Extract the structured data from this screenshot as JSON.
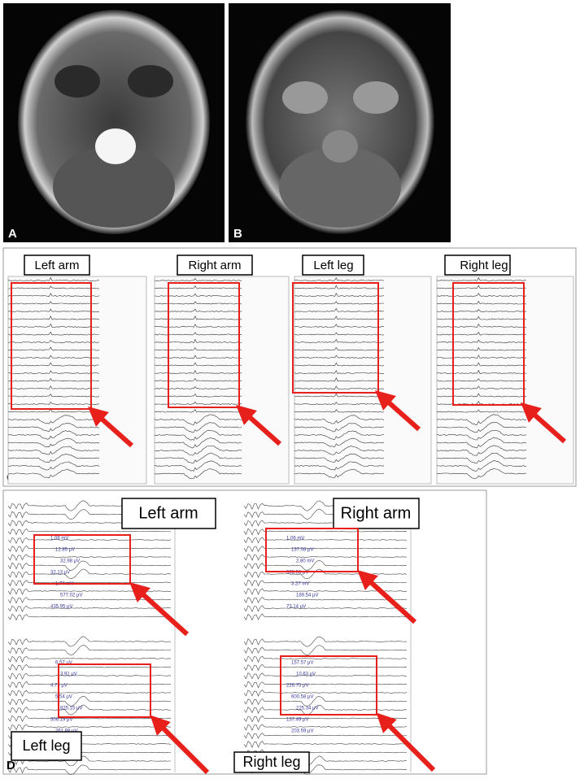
{
  "panel_labels": {
    "a": "A",
    "b": "B",
    "c": "C",
    "d": "D"
  },
  "emg": {
    "labels": [
      "Left arm",
      "Right arm",
      "Left leg",
      "Right leg"
    ]
  },
  "mep": {
    "labels": {
      "left_arm": "Left arm",
      "right_arm": "Right arm",
      "left_leg": "Left leg",
      "right_leg": "Right leg"
    },
    "left_annotations": [
      "1.06 mV",
      "12.85 μV",
      "32.98 μV",
      "32.13 μV",
      "1.74 mV",
      "577.02 μV",
      "435.95 μV",
      "6.57 μV",
      "3.91 μV",
      "4.73 μV",
      "5.54 μV",
      "825.15 μV",
      "306.19 μV",
      "261.88 μV"
    ],
    "right_annotations": [
      "1.06 mV",
      "137.08 μV",
      "2.80 mV",
      "905.56 μV",
      "3.27 mV",
      "189.54 μV",
      "73.14 μV",
      "157.57 μV",
      "10.63 μV",
      "226.75 μV",
      "600.58 μV",
      "225.34 μV",
      "137.49 μV",
      "203.59 μV"
    ]
  }
}
